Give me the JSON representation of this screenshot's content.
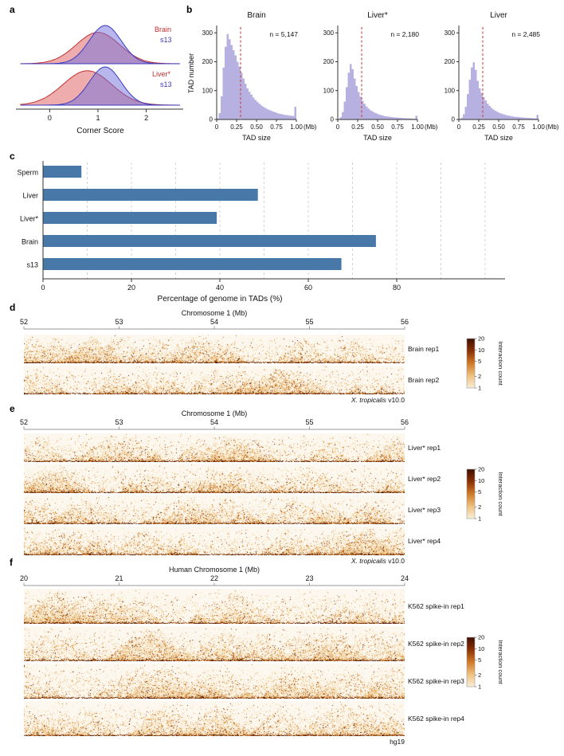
{
  "labels": {
    "a": "a",
    "b": "b",
    "c": "c",
    "d": "d",
    "e": "e",
    "f": "f"
  },
  "chart_data": [
    {
      "id": "a",
      "type": "area",
      "name": "corner-score-density",
      "xlabel": "Corner Score",
      "xticks": [
        0,
        1,
        2
      ],
      "xlim": [
        -0.6,
        2.7
      ],
      "colors": {
        "red": "#c03030",
        "blue": "#3b3bc0",
        "red_fill": "rgba(222,90,90,0.5)",
        "blue_fill": "rgba(112,112,222,0.5)"
      },
      "groups": [
        {
          "legend": [
            {
              "label": "Brain",
              "color": "#c03030"
            },
            {
              "label": "s13",
              "color": "#3b3bc0"
            }
          ],
          "curves": [
            {
              "name": "Brain",
              "line": "red",
              "mean": 1.0,
              "sd": 0.45,
              "amp": 0.82
            },
            {
              "name": "s13",
              "line": "blue",
              "mean": 1.15,
              "sd": 0.33,
              "amp": 1.0
            }
          ]
        },
        {
          "legend": [
            {
              "label": "Liver*",
              "color": "#c03030"
            },
            {
              "label": "s13",
              "color": "#3b3bc0"
            }
          ],
          "curves": [
            {
              "name": "Liver*",
              "line": "red",
              "mean": 0.78,
              "sd": 0.5,
              "amp": 0.9
            },
            {
              "name": "s13",
              "line": "blue",
              "mean": 1.15,
              "sd": 0.33,
              "amp": 1.0
            }
          ]
        }
      ]
    },
    {
      "id": "b",
      "type": "bar",
      "name": "tad-size-histograms",
      "ylabel": "TAD number",
      "xlabel": "TAD size",
      "x_unit": "(Mb)",
      "yticks": [
        0,
        100,
        200,
        300
      ],
      "ylim": [
        0,
        320
      ],
      "xtick_labels": [
        "0",
        "0.25",
        "0.50",
        "0.75",
        "1.00"
      ],
      "xlim": [
        0,
        1.0
      ],
      "vline": 0.3,
      "bar_color": "#b7b1e2",
      "vline_color": "#cc3333",
      "histograms": [
        {
          "title": "Brain",
          "n_label": "n = 5,147",
          "bin_width_mb": 0.025,
          "counts": [
            4,
            22,
            80,
            180,
            252,
            296,
            278,
            258,
            240,
            222,
            200,
            183,
            162,
            142,
            124,
            108,
            96,
            86,
            76,
            68,
            61,
            55,
            49,
            44,
            40,
            36,
            33,
            30,
            27,
            25,
            22,
            20,
            19,
            17,
            16,
            15,
            14,
            13,
            12,
            44
          ]
        },
        {
          "title": "Liver*",
          "n_label": "n = 2,180",
          "bin_width_mb": 0.025,
          "counts": [
            2,
            8,
            26,
            62,
            112,
            162,
            192,
            174,
            142,
            116,
            95,
            79,
            65,
            54,
            45,
            38,
            32,
            28,
            24,
            21,
            18,
            16,
            14,
            12,
            11,
            10,
            9,
            8,
            7,
            7,
            6,
            6,
            5,
            5,
            4,
            4,
            4,
            3,
            3,
            13
          ]
        },
        {
          "title": "Liver",
          "n_label": "n = 2,485",
          "bin_width_mb": 0.025,
          "counts": [
            2,
            6,
            18,
            44,
            88,
            138,
            180,
            198,
            172,
            134,
            108,
            92,
            78,
            66,
            55,
            47,
            40,
            34,
            30,
            26,
            23,
            20,
            18,
            16,
            14,
            13,
            11,
            10,
            9,
            9,
            8,
            7,
            7,
            6,
            6,
            5,
            5,
            4,
            4,
            16
          ]
        }
      ]
    },
    {
      "id": "c",
      "type": "bar",
      "name": "genome-in-tads",
      "orientation": "horizontal",
      "categories": [
        "Sperm",
        "Liver",
        "Liver*",
        "Brain",
        "s13"
      ],
      "values": [
        8.6,
        48.5,
        39.2,
        75.2,
        67.4
      ],
      "xticks": [
        0,
        20,
        40,
        60,
        80
      ],
      "xlim": [
        0,
        104
      ],
      "xlabel": "Percentage of genome in TADs (%)",
      "bar_color": "#4878a8",
      "grid_step": 10,
      "grid_max": 100
    }
  ],
  "hic": {
    "colorbar": {
      "label": "Interaction count",
      "ticks": [
        20,
        10,
        5,
        2,
        1
      ],
      "colors": [
        "#3f0e00",
        "#8a3104",
        "#d07a28",
        "#eec07e",
        "#f9efd8"
      ]
    },
    "palette": [
      "#f7e6c4",
      "#f2cf97",
      "#e8ae62",
      "#d5863a",
      "#b55d16",
      "#7c3005",
      "#451302"
    ],
    "background": "#fdf8ef",
    "panels": [
      {
        "id": "d",
        "axis_title": "Chromosome 1 (Mb)",
        "ticks": [
          52,
          53,
          54,
          55,
          56
        ],
        "tracks": [
          "Brain rep1",
          "Brain rep2"
        ],
        "genome_italic": "X. tropicalis",
        "genome_plain": " v10.0",
        "seed": 101
      },
      {
        "id": "e",
        "axis_title": "Chromosome 1 (Mb)",
        "ticks": [
          52,
          53,
          54,
          55,
          56
        ],
        "tracks": [
          "Liver* rep1",
          "Liver* rep2",
          "Liver* rep3",
          "Liver* rep4"
        ],
        "genome_italic": "X. tropicalis",
        "genome_plain": " v10.0",
        "seed": 202
      },
      {
        "id": "f",
        "axis_title": "Human Chromosome 1 (Mb)",
        "ticks": [
          20,
          21,
          22,
          23,
          24
        ],
        "tracks": [
          "K562 spike-in rep1",
          "K562 spike-in rep2",
          "K562 spike-in rep3",
          "K562 spike-in rep4"
        ],
        "genome_italic": "",
        "genome_plain": "hg19",
        "seed": 303
      }
    ]
  }
}
